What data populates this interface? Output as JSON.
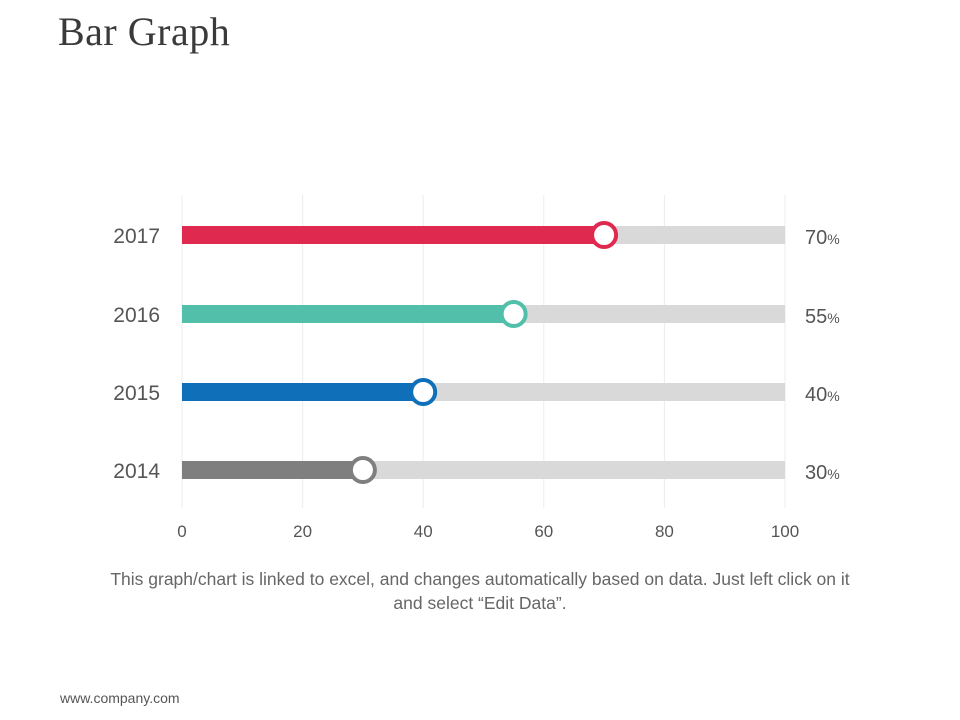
{
  "page": {
    "title": "Bar Graph",
    "caption": "This graph/chart is linked to excel, and changes automatically based on data. Just left click on it and select “Edit Data”.",
    "footer": "www.company.com"
  },
  "chart_data": {
    "type": "bar",
    "orientation": "horizontal",
    "categories": [
      "2017",
      "2016",
      "2015",
      "2014"
    ],
    "values": [
      70,
      55,
      40,
      30
    ],
    "value_labels": [
      "70",
      "55",
      "40",
      "30"
    ],
    "value_suffix": "%",
    "colors": [
      "#e0294f",
      "#52bfab",
      "#0f6fb8",
      "#7f7f7f"
    ],
    "track_color": "#d9d9d9",
    "xlim": [
      0,
      100
    ],
    "xticks": [
      0,
      20,
      40,
      60,
      80,
      100
    ],
    "grid": true,
    "legend": false,
    "title": "",
    "xlabel": "",
    "ylabel": ""
  }
}
